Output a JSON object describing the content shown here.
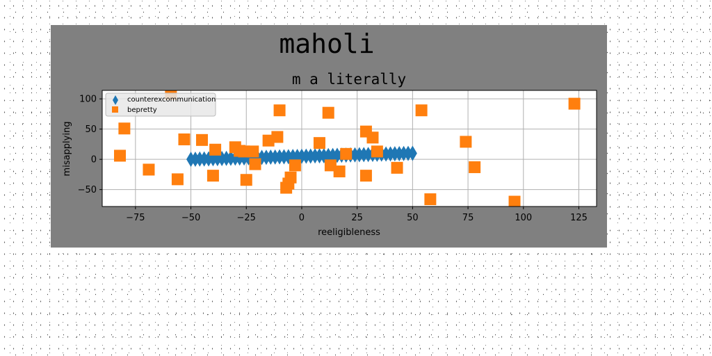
{
  "chart_data": {
    "type": "scatter",
    "title": "maholi",
    "subtitle": "m a literally",
    "xlabel": "reeligibleness",
    "ylabel": "misapplying",
    "xlim": [
      -90,
      133
    ],
    "ylim": [
      -78,
      114
    ],
    "xticks": [
      -75,
      -50,
      -25,
      0,
      25,
      50,
      75,
      100,
      125
    ],
    "yticks": [
      -50,
      0,
      50,
      100
    ],
    "xtick_labels": [
      "−75",
      "−50",
      "−25",
      "0",
      "25",
      "50",
      "75",
      "100",
      "125"
    ],
    "ytick_labels": [
      "−50",
      "0",
      "50",
      "100"
    ],
    "grid": true,
    "legend_position": "upper-left",
    "series": [
      {
        "name": "counterexcommunication",
        "marker": "diamond",
        "color": "#1f77b4",
        "x": [
          -50,
          -48,
          -46,
          -44,
          -42,
          -40,
          -38,
          -36,
          -34,
          -32,
          -30,
          -28,
          -26,
          -24,
          -22,
          -20,
          -18,
          -16,
          -14,
          -12,
          -10,
          -8,
          -6,
          -4,
          -2,
          0,
          2,
          4,
          6,
          8,
          10,
          12,
          14,
          16,
          18,
          20,
          22,
          24,
          26,
          28,
          30,
          32,
          34,
          36,
          38,
          40,
          42,
          44,
          46,
          48,
          50
        ],
        "y": [
          0.0,
          0.2,
          0.4,
          0.6,
          0.8,
          1.0,
          1.2,
          1.4,
          1.6,
          1.8,
          2.0,
          2.2,
          2.4,
          2.6,
          2.8,
          3.0,
          3.2,
          3.4,
          3.6,
          3.8,
          4.0,
          4.2,
          4.4,
          4.6,
          4.8,
          5.0,
          5.2,
          5.4,
          5.6,
          5.8,
          6.0,
          6.2,
          6.4,
          6.6,
          6.8,
          7.0,
          7.2,
          7.4,
          7.6,
          7.8,
          8.0,
          8.2,
          8.4,
          8.6,
          8.8,
          9.0,
          9.2,
          9.4,
          9.6,
          9.8,
          10.0
        ]
      },
      {
        "name": "bepretty",
        "marker": "square",
        "color": "#ff7f0e",
        "x": [
          -59,
          -80,
          -82,
          -69,
          -56,
          -53,
          -45,
          -39,
          -40,
          -30,
          -28,
          -26,
          -25,
          -22,
          -21,
          -15,
          -11,
          -10,
          -7,
          -6,
          -5,
          -3,
          8,
          12,
          13,
          17,
          20,
          29,
          29,
          32,
          34,
          43,
          54,
          58,
          74,
          78,
          96,
          123
        ],
        "y": [
          108,
          51,
          6,
          -17,
          -33,
          33,
          32,
          16,
          -27,
          20,
          14,
          13,
          -34,
          13,
          -8,
          31,
          37,
          81,
          -47,
          -40,
          -30,
          -10,
          27,
          77,
          -10,
          -20,
          9,
          46,
          -27,
          36,
          13,
          -14,
          81,
          -66,
          29,
          -13,
          -70,
          92
        ]
      }
    ]
  }
}
